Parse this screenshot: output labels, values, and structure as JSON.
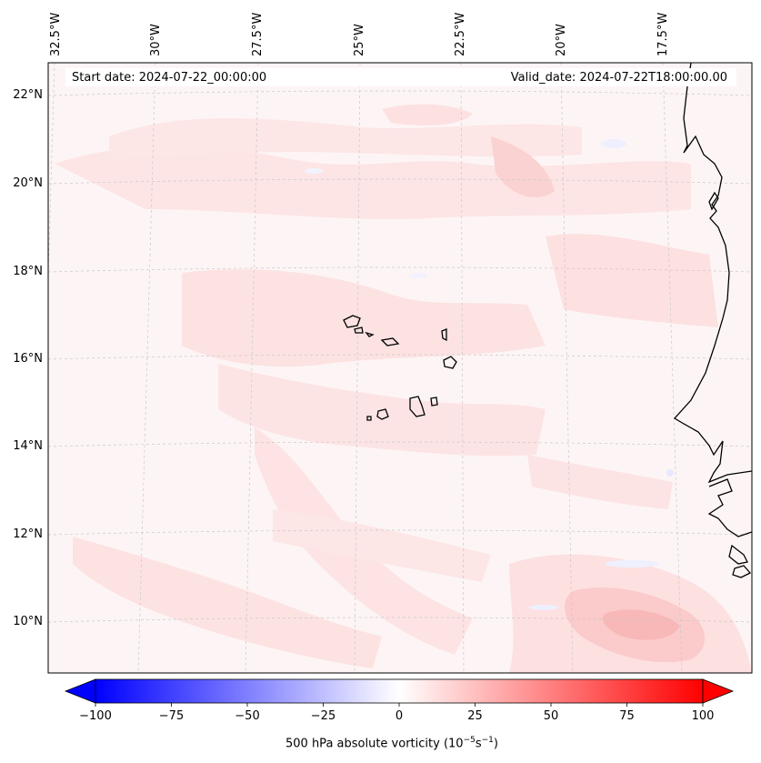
{
  "map": {
    "start_date": "Start date: 2024-07-22_00:00:00",
    "valid_date": "Valid_date: 2024-07-22T18:00:00.00",
    "longitude_labels": [
      "32.5°W",
      "30°W",
      "27.5°W",
      "25°W",
      "22.5°W",
      "20°W",
      "17.5°W"
    ],
    "latitude_labels": [
      "22°N",
      "20°N",
      "18°N",
      "16°N",
      "14°N",
      "12°N",
      "10°N"
    ],
    "region": "Cabo Verde / West African coast",
    "colors": {
      "coastline": "#000000",
      "gridline": "#c8c8c8",
      "field_base": "#fdf5f5",
      "field_light_red": "#fde3e3",
      "field_mid_red": "#fbd0d0",
      "field_light_blue": "#eef0ff"
    }
  },
  "colorbar": {
    "ticks": [
      "−100",
      "−75",
      "−50",
      "−25",
      "0",
      "25",
      "50",
      "75",
      "100"
    ],
    "label": "500 hPa absolute vorticity (10",
    "label_exp1": "−5",
    "label_mid": "s",
    "label_exp2": "−1",
    "label_end": ")",
    "min": -100,
    "max": 100,
    "colors": [
      "#0000ff",
      "#ffffff",
      "#ff0000"
    ]
  }
}
